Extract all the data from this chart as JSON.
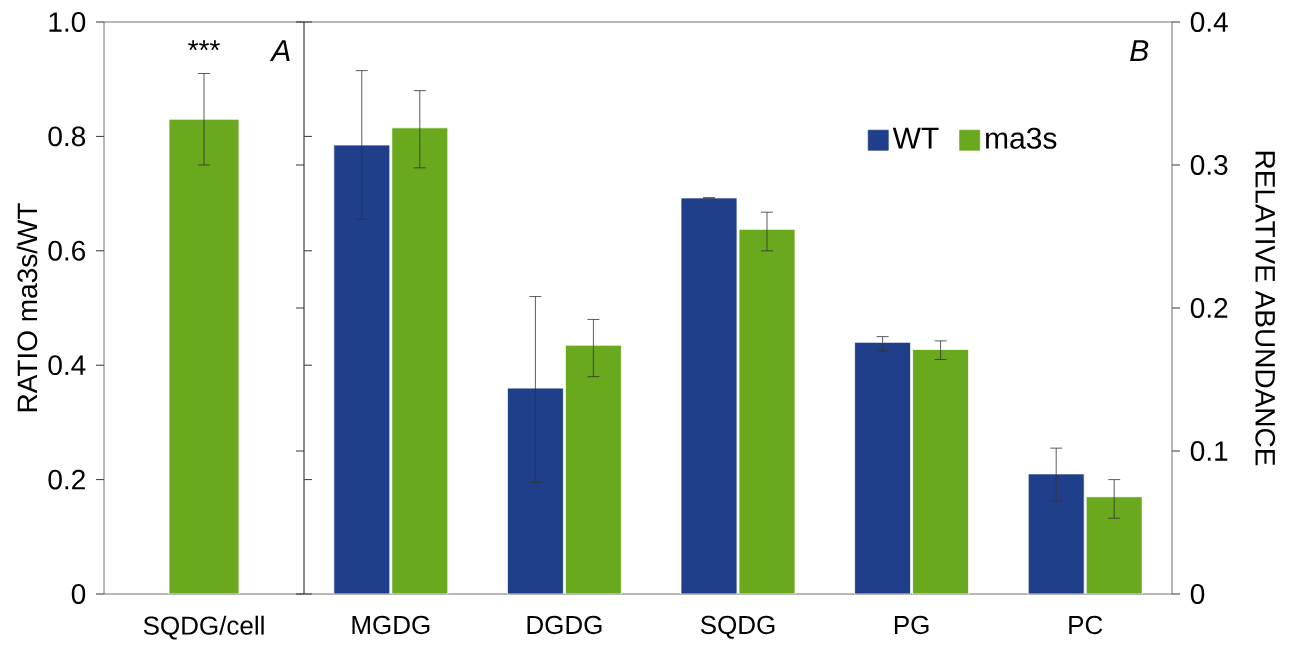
{
  "chart_data": [
    {
      "type": "bar",
      "categories": [
        "SQDG/cell"
      ],
      "ylabel": "RATIO ma3s/WT",
      "ylim": [
        0,
        1.0
      ],
      "yticks": [
        0,
        0.2,
        0.4,
        0.6,
        0.8,
        {
          "value": 1,
          "label": "1.0"
        }
      ],
      "series": [
        {
          "color": "#6aa81e",
          "values": [
            0.83
          ],
          "errors": [
            [
              0.75,
              0.91
            ]
          ]
        }
      ],
      "annotations": [
        "***",
        "A"
      ]
    },
    {
      "type": "bar",
      "categories": [
        "MGDG",
        "DGDG",
        "SQDG",
        "PG",
        "PC"
      ],
      "y2label": "RELATIVE ABUNDANCE",
      "y2lim": [
        0,
        0.4
      ],
      "y2ticks": [
        0,
        0.1,
        0.2,
        0.3,
        0.4
      ],
      "legend": "top right",
      "series": [
        {
          "name": "WT",
          "color": "#1f3f8a",
          "axis": "y2",
          "values": [
            0.314,
            0.144,
            0.277,
            0.176,
            0.084
          ],
          "errors": [
            [
              0.262,
              0.366
            ],
            [
              0.078,
              0.208
            ],
            null,
            [
              0.17,
              0.18
            ],
            [
              0.065,
              0.102
            ]
          ]
        },
        {
          "name": "ma3s",
          "color": "#6aa81e",
          "axis": "y2",
          "values": [
            0.326,
            0.174,
            0.255,
            0.171,
            0.068
          ],
          "errors": [
            [
              0.298,
              0.352
            ],
            [
              0.152,
              0.192
            ],
            [
              0.24,
              0.267
            ],
            [
              0.164,
              0.177
            ],
            [
              0.053,
              0.08
            ]
          ]
        }
      ],
      "annotations": [
        "B"
      ]
    }
  ]
}
